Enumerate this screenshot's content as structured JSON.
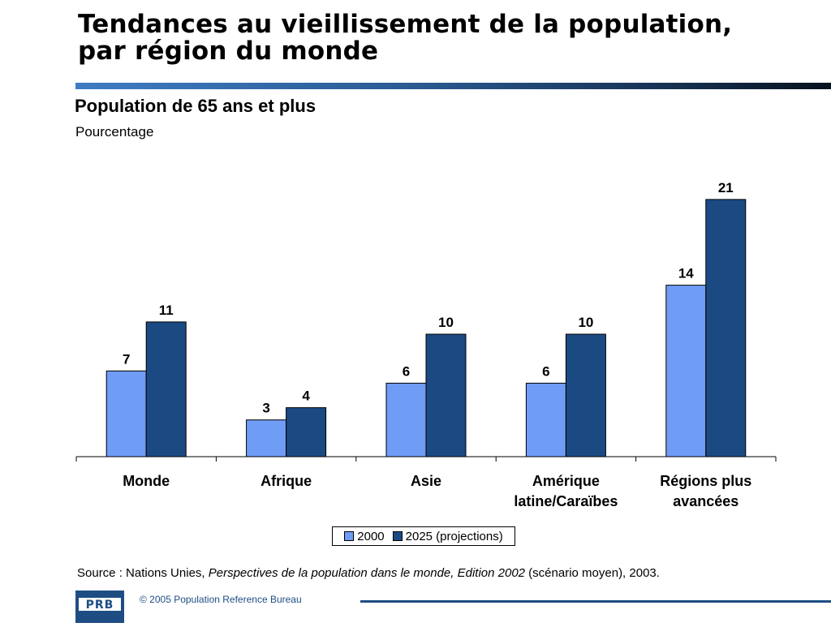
{
  "title_lines": [
    "Tendances au vieillissement de la population,",
    "par région du monde"
  ],
  "subtitle": "Population de 65 ans et plus",
  "unit": "Pourcentage",
  "colors": {
    "series_2000": "#6f9cf5",
    "series_2025": "#1b4a83",
    "title_bar": "#2a5a92"
  },
  "chart_data": {
    "type": "bar",
    "title": "Population de 65 ans et plus",
    "ylabel": "Pourcentage",
    "xlabel": "",
    "categories": [
      [
        "Monde"
      ],
      [
        "Afrique"
      ],
      [
        "Asie"
      ],
      [
        "Amérique",
        "latine/Caraïbes"
      ],
      [
        "Régions plus",
        "avancées"
      ]
    ],
    "series": [
      {
        "name": "2000",
        "values": [
          7,
          3,
          6,
          6,
          14
        ],
        "labels": [
          "7",
          "3",
          "6",
          "6",
          "14"
        ]
      },
      {
        "name": "2025 (projections)",
        "values": [
          11,
          4,
          10,
          10,
          21
        ],
        "labels": [
          "11",
          "4",
          "10",
          "10",
          "21"
        ]
      }
    ],
    "ylim": [
      0,
      22
    ],
    "grid": false,
    "legend_position": "bottom"
  },
  "legend": {
    "item_2000": "2000",
    "item_2025": "2025 (projections)"
  },
  "source": {
    "prefix": "Source : Nations Unies, ",
    "italic": "Perspectives de la population dans le monde, Edition 2002",
    "suffix": " (scénario moyen), 2003."
  },
  "footer": {
    "logo_text": "PRB",
    "copyright": "© 2005 Population Reference Bureau"
  }
}
